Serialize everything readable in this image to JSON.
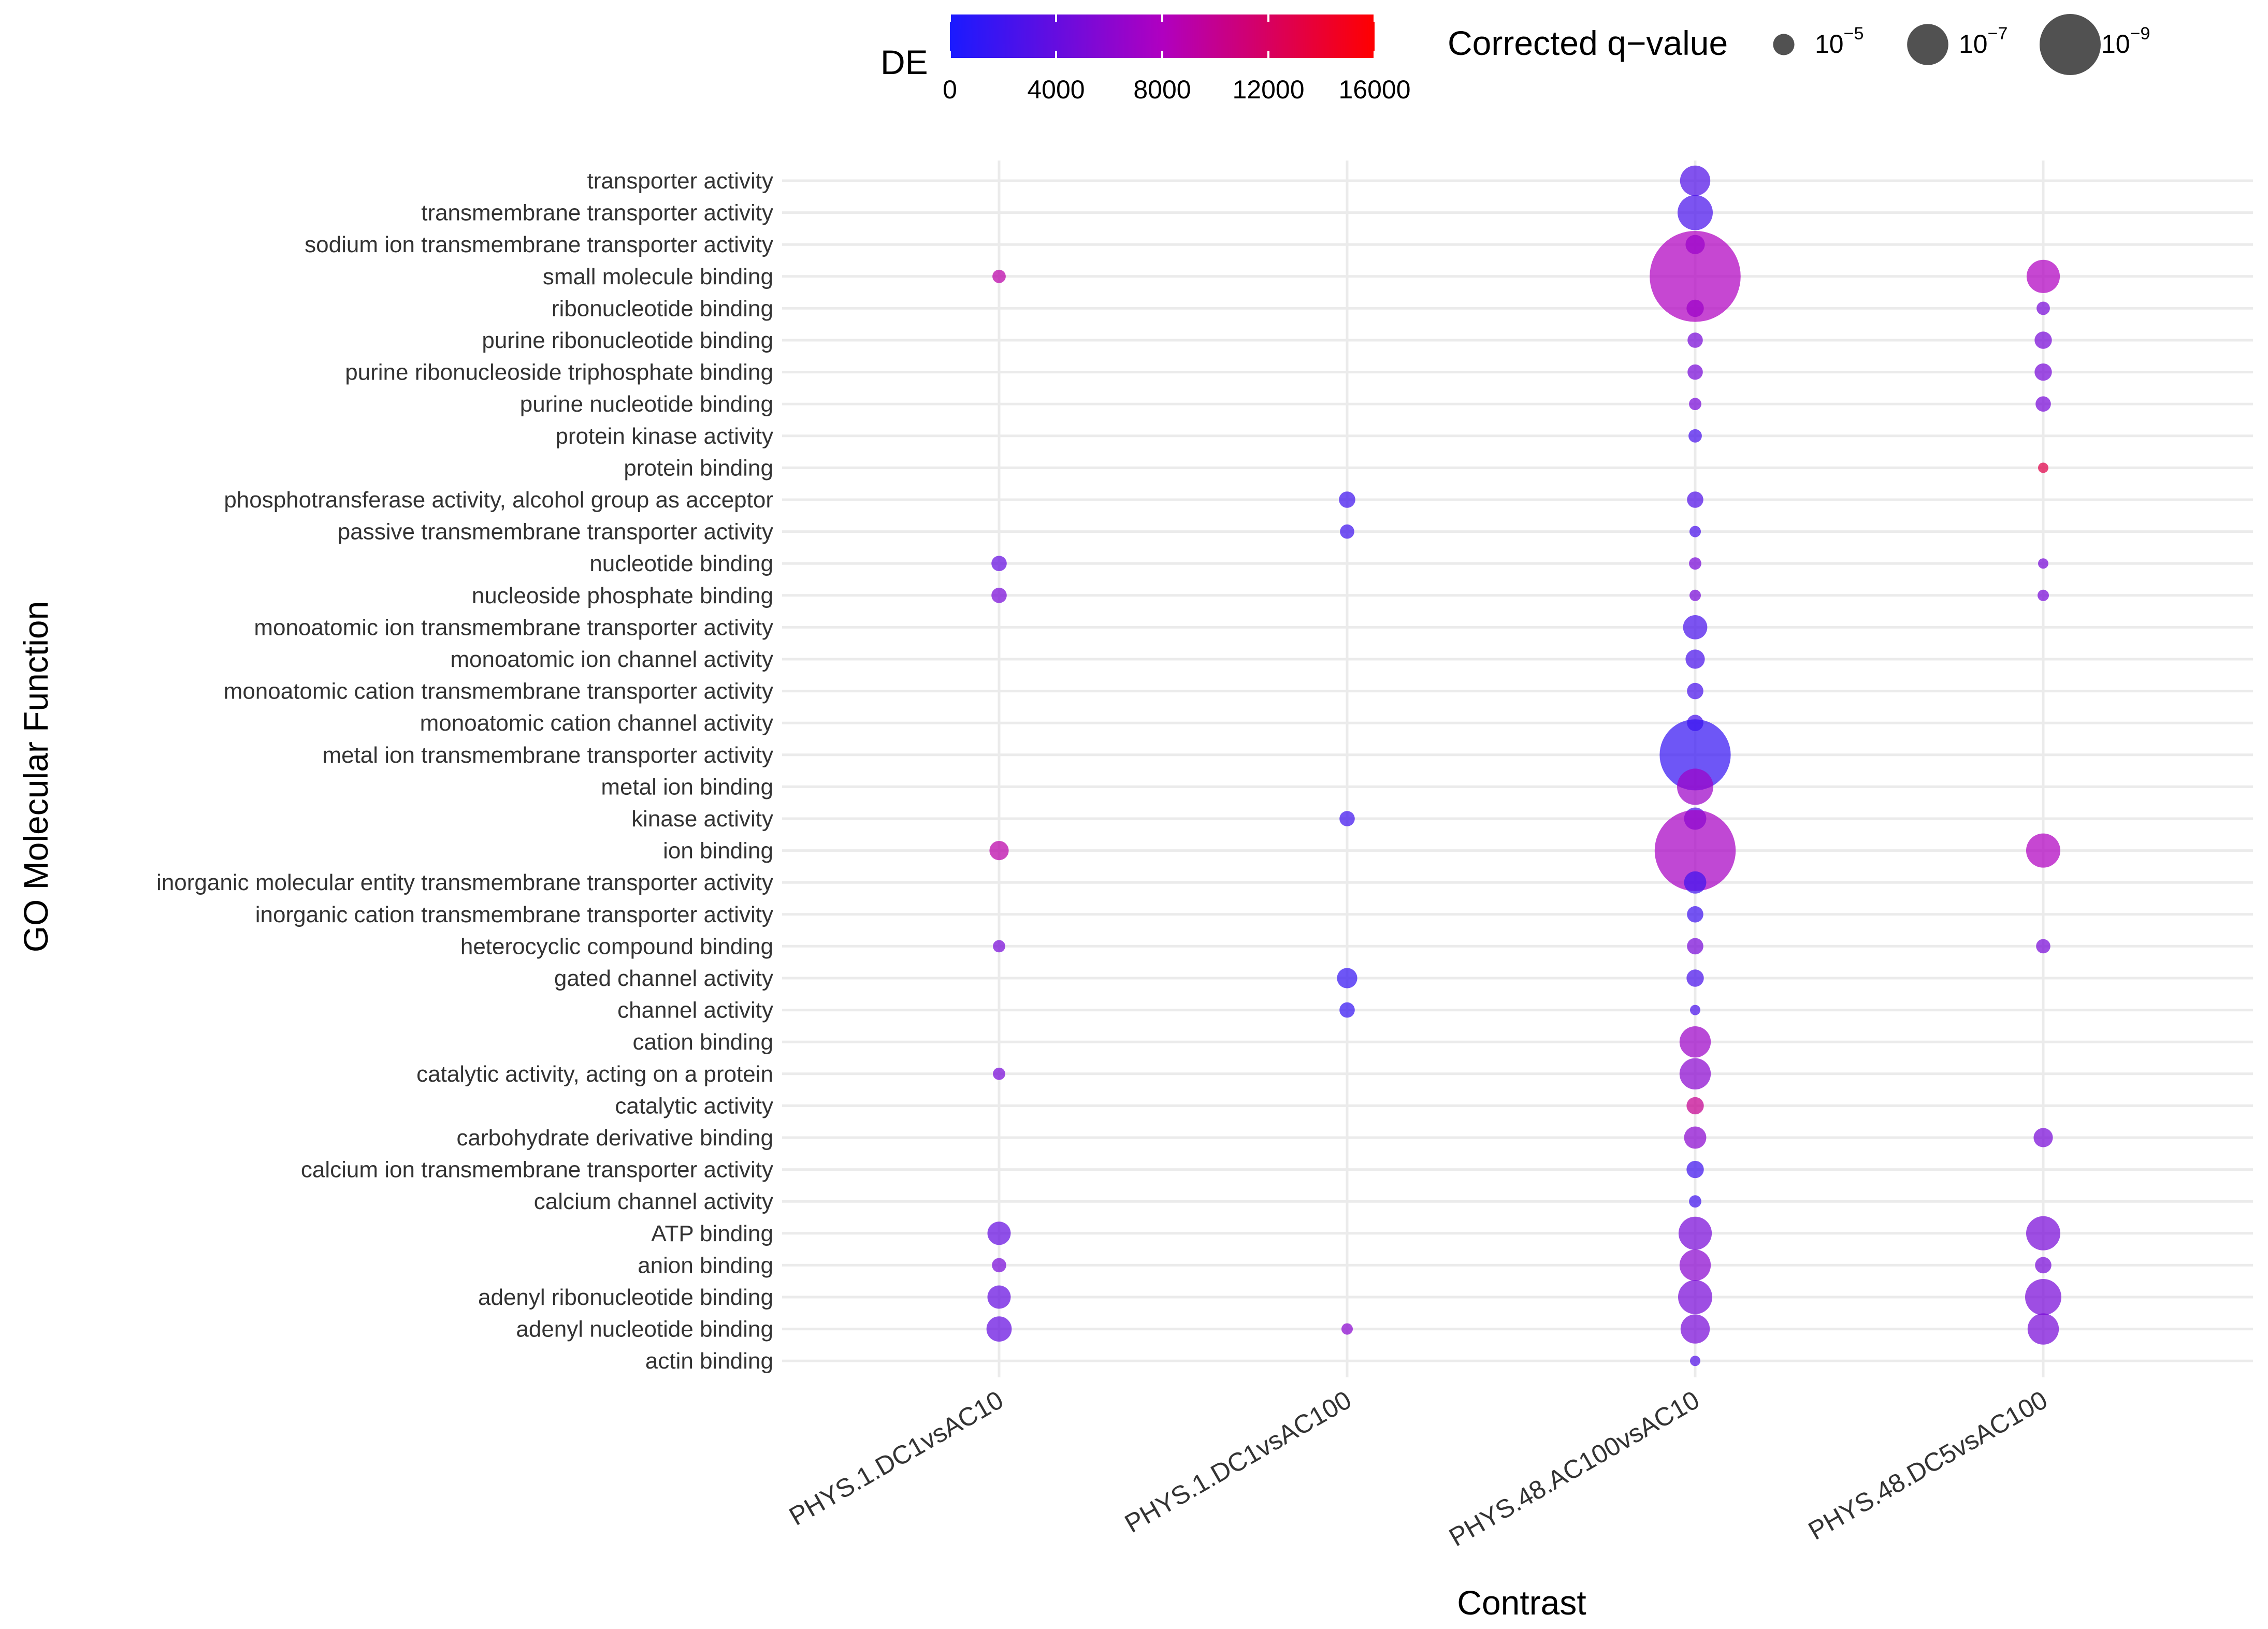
{
  "chart_data": {
    "type": "scatter",
    "xlabel": "Contrast",
    "ylabel": "GO Molecular Function",
    "categories_x": [
      "PHYS.1.DC1vsAC10",
      "PHYS.1.DC1vsAC100",
      "PHYS.48.AC100vsAC10",
      "PHYS.48.DC5vsAC100"
    ],
    "categories_y": [
      "transporter activity",
      "transmembrane transporter activity",
      "sodium ion transmembrane transporter activity",
      "small molecule binding",
      "ribonucleotide binding",
      "purine ribonucleotide binding",
      "purine ribonucleoside triphosphate binding",
      "purine nucleotide binding",
      "protein kinase activity",
      "protein binding",
      "phosphotransferase activity, alcohol group as acceptor",
      "passive transmembrane transporter activity",
      "nucleotide binding",
      "nucleoside phosphate binding",
      "monoatomic ion transmembrane transporter activity",
      "monoatomic ion channel activity",
      "monoatomic cation transmembrane transporter activity",
      "monoatomic cation channel activity",
      "metal ion transmembrane transporter activity",
      "metal ion binding",
      "kinase activity",
      "ion binding",
      "inorganic molecular entity transmembrane transporter activity",
      "inorganic cation transmembrane transporter activity",
      "heterocyclic compound binding",
      "gated channel activity",
      "channel activity",
      "cation binding",
      "catalytic activity, acting on a protein",
      "catalytic activity",
      "carbohydrate derivative binding",
      "calcium ion transmembrane transporter activity",
      "calcium channel activity",
      "ATP binding",
      "anion binding",
      "adenyl ribonucleotide binding",
      "adenyl nucleotide binding",
      "actin binding"
    ],
    "color_legend": {
      "title": "DE",
      "ticks": [
        0,
        4000,
        8000,
        12000,
        16000
      ],
      "range": [
        0,
        16000
      ],
      "low_color": "#1a1aff",
      "mid_color": "#b000c0",
      "high_color": "#ff0000"
    },
    "size_legend": {
      "title": "Corrected q−value",
      "entries": [
        {
          "base": "10",
          "exp": "−5",
          "value": -5
        },
        {
          "base": "10",
          "exp": "−7",
          "value": -7
        },
        {
          "base": "10",
          "exp": "−9",
          "value": -9
        }
      ]
    },
    "points": [
      {
        "x": 0,
        "y": 3,
        "de": 9000,
        "log10q": -4.2
      },
      {
        "x": 0,
        "y": 12,
        "de": 4000,
        "log10q": -4.4
      },
      {
        "x": 0,
        "y": 13,
        "de": 5000,
        "log10q": -4.4
      },
      {
        "x": 0,
        "y": 21,
        "de": 9000,
        "log10q": -4.8
      },
      {
        "x": 0,
        "y": 24,
        "de": 5000,
        "log10q": -4.1
      },
      {
        "x": 0,
        "y": 28,
        "de": 5000,
        "log10q": -4.1
      },
      {
        "x": 0,
        "y": 33,
        "de": 4000,
        "log10q": -5.2
      },
      {
        "x": 0,
        "y": 34,
        "de": 5000,
        "log10q": -4.3
      },
      {
        "x": 0,
        "y": 35,
        "de": 4000,
        "log10q": -5.2
      },
      {
        "x": 0,
        "y": 36,
        "de": 4000,
        "log10q": -5.4
      },
      {
        "x": 1,
        "y": 10,
        "de": 2000,
        "log10q": -4.5
      },
      {
        "x": 1,
        "y": 11,
        "de": 2000,
        "log10q": -4.3
      },
      {
        "x": 1,
        "y": 20,
        "de": 2000,
        "log10q": -4.4
      },
      {
        "x": 1,
        "y": 25,
        "de": 1500,
        "log10q": -4.9
      },
      {
        "x": 1,
        "y": 26,
        "de": 1500,
        "log10q": -4.4
      },
      {
        "x": 1,
        "y": 36,
        "de": 6000,
        "log10q": -4.0
      },
      {
        "x": 2,
        "y": 0,
        "de": 3000,
        "log10q": -5.9
      },
      {
        "x": 2,
        "y": 1,
        "de": 2500,
        "log10q": -6.4
      },
      {
        "x": 2,
        "y": 2,
        "de": 4000,
        "log10q": -4.8
      },
      {
        "x": 2,
        "y": 3,
        "de": 8000,
        "log10q": -12.0
      },
      {
        "x": 2,
        "y": 4,
        "de": 7000,
        "log10q": -4.6
      },
      {
        "x": 2,
        "y": 5,
        "de": 5000,
        "log10q": -4.4
      },
      {
        "x": 2,
        "y": 6,
        "de": 5000,
        "log10q": -4.4
      },
      {
        "x": 2,
        "y": 7,
        "de": 5000,
        "log10q": -4.1
      },
      {
        "x": 2,
        "y": 8,
        "de": 2500,
        "log10q": -4.2
      },
      {
        "x": 2,
        "y": 10,
        "de": 3000,
        "log10q": -4.5
      },
      {
        "x": 2,
        "y": 11,
        "de": 2500,
        "log10q": -4.0
      },
      {
        "x": 2,
        "y": 12,
        "de": 5000,
        "log10q": -4.1
      },
      {
        "x": 2,
        "y": 13,
        "de": 5000,
        "log10q": -4.0
      },
      {
        "x": 2,
        "y": 14,
        "de": 2500,
        "log10q": -5.3
      },
      {
        "x": 2,
        "y": 15,
        "de": 2500,
        "log10q": -4.8
      },
      {
        "x": 2,
        "y": 16,
        "de": 2500,
        "log10q": -4.5
      },
      {
        "x": 2,
        "y": 17,
        "de": 2500,
        "log10q": -4.5
      },
      {
        "x": 2,
        "y": 18,
        "de": 1500,
        "log10q": -10.0
      },
      {
        "x": 2,
        "y": 19,
        "de": 7000,
        "log10q": -6.5
      },
      {
        "x": 2,
        "y": 20,
        "de": 2500,
        "log10q": -5.1
      },
      {
        "x": 2,
        "y": 21,
        "de": 7500,
        "log10q": -11.0
      },
      {
        "x": 2,
        "y": 22,
        "de": 2000,
        "log10q": -5.1
      },
      {
        "x": 2,
        "y": 23,
        "de": 2000,
        "log10q": -4.5
      },
      {
        "x": 2,
        "y": 24,
        "de": 5000,
        "log10q": -4.5
      },
      {
        "x": 2,
        "y": 25,
        "de": 2500,
        "log10q": -4.6
      },
      {
        "x": 2,
        "y": 26,
        "de": 2500,
        "log10q": -3.9
      },
      {
        "x": 2,
        "y": 27,
        "de": 7000,
        "log10q": -6.0
      },
      {
        "x": 2,
        "y": 28,
        "de": 6000,
        "log10q": -6.0
      },
      {
        "x": 2,
        "y": 29,
        "de": 10000,
        "log10q": -4.6
      },
      {
        "x": 2,
        "y": 30,
        "de": 6000,
        "log10q": -5.1
      },
      {
        "x": 2,
        "y": 31,
        "de": 2000,
        "log10q": -4.6
      },
      {
        "x": 2,
        "y": 32,
        "de": 2000,
        "log10q": -4.1
      },
      {
        "x": 2,
        "y": 33,
        "de": 5000,
        "log10q": -6.2
      },
      {
        "x": 2,
        "y": 34,
        "de": 6000,
        "log10q": -6.0
      },
      {
        "x": 2,
        "y": 35,
        "de": 5000,
        "log10q": -6.3
      },
      {
        "x": 2,
        "y": 36,
        "de": 5000,
        "log10q": -5.8
      },
      {
        "x": 2,
        "y": 37,
        "de": 3000,
        "log10q": -3.9
      },
      {
        "x": 3,
        "y": 3,
        "de": 8000,
        "log10q": -6.2
      },
      {
        "x": 3,
        "y": 4,
        "de": 5000,
        "log10q": -4.2
      },
      {
        "x": 3,
        "y": 5,
        "de": 5000,
        "log10q": -4.6
      },
      {
        "x": 3,
        "y": 6,
        "de": 5000,
        "log10q": -4.6
      },
      {
        "x": 3,
        "y": 7,
        "de": 5000,
        "log10q": -4.4
      },
      {
        "x": 3,
        "y": 9,
        "de": 13000,
        "log10q": -3.9
      },
      {
        "x": 3,
        "y": 12,
        "de": 5000,
        "log10q": -3.9
      },
      {
        "x": 3,
        "y": 13,
        "de": 5000,
        "log10q": -4.0
      },
      {
        "x": 3,
        "y": 21,
        "de": 8000,
        "log10q": -6.3
      },
      {
        "x": 3,
        "y": 24,
        "de": 5000,
        "log10q": -4.3
      },
      {
        "x": 3,
        "y": 30,
        "de": 5000,
        "log10q": -4.8
      },
      {
        "x": 3,
        "y": 33,
        "de": 5000,
        "log10q": -6.3
      },
      {
        "x": 3,
        "y": 34,
        "de": 5000,
        "log10q": -4.5
      },
      {
        "x": 3,
        "y": 35,
        "de": 5000,
        "log10q": -6.5
      },
      {
        "x": 3,
        "y": 36,
        "de": 5000,
        "log10q": -6.0
      }
    ]
  }
}
